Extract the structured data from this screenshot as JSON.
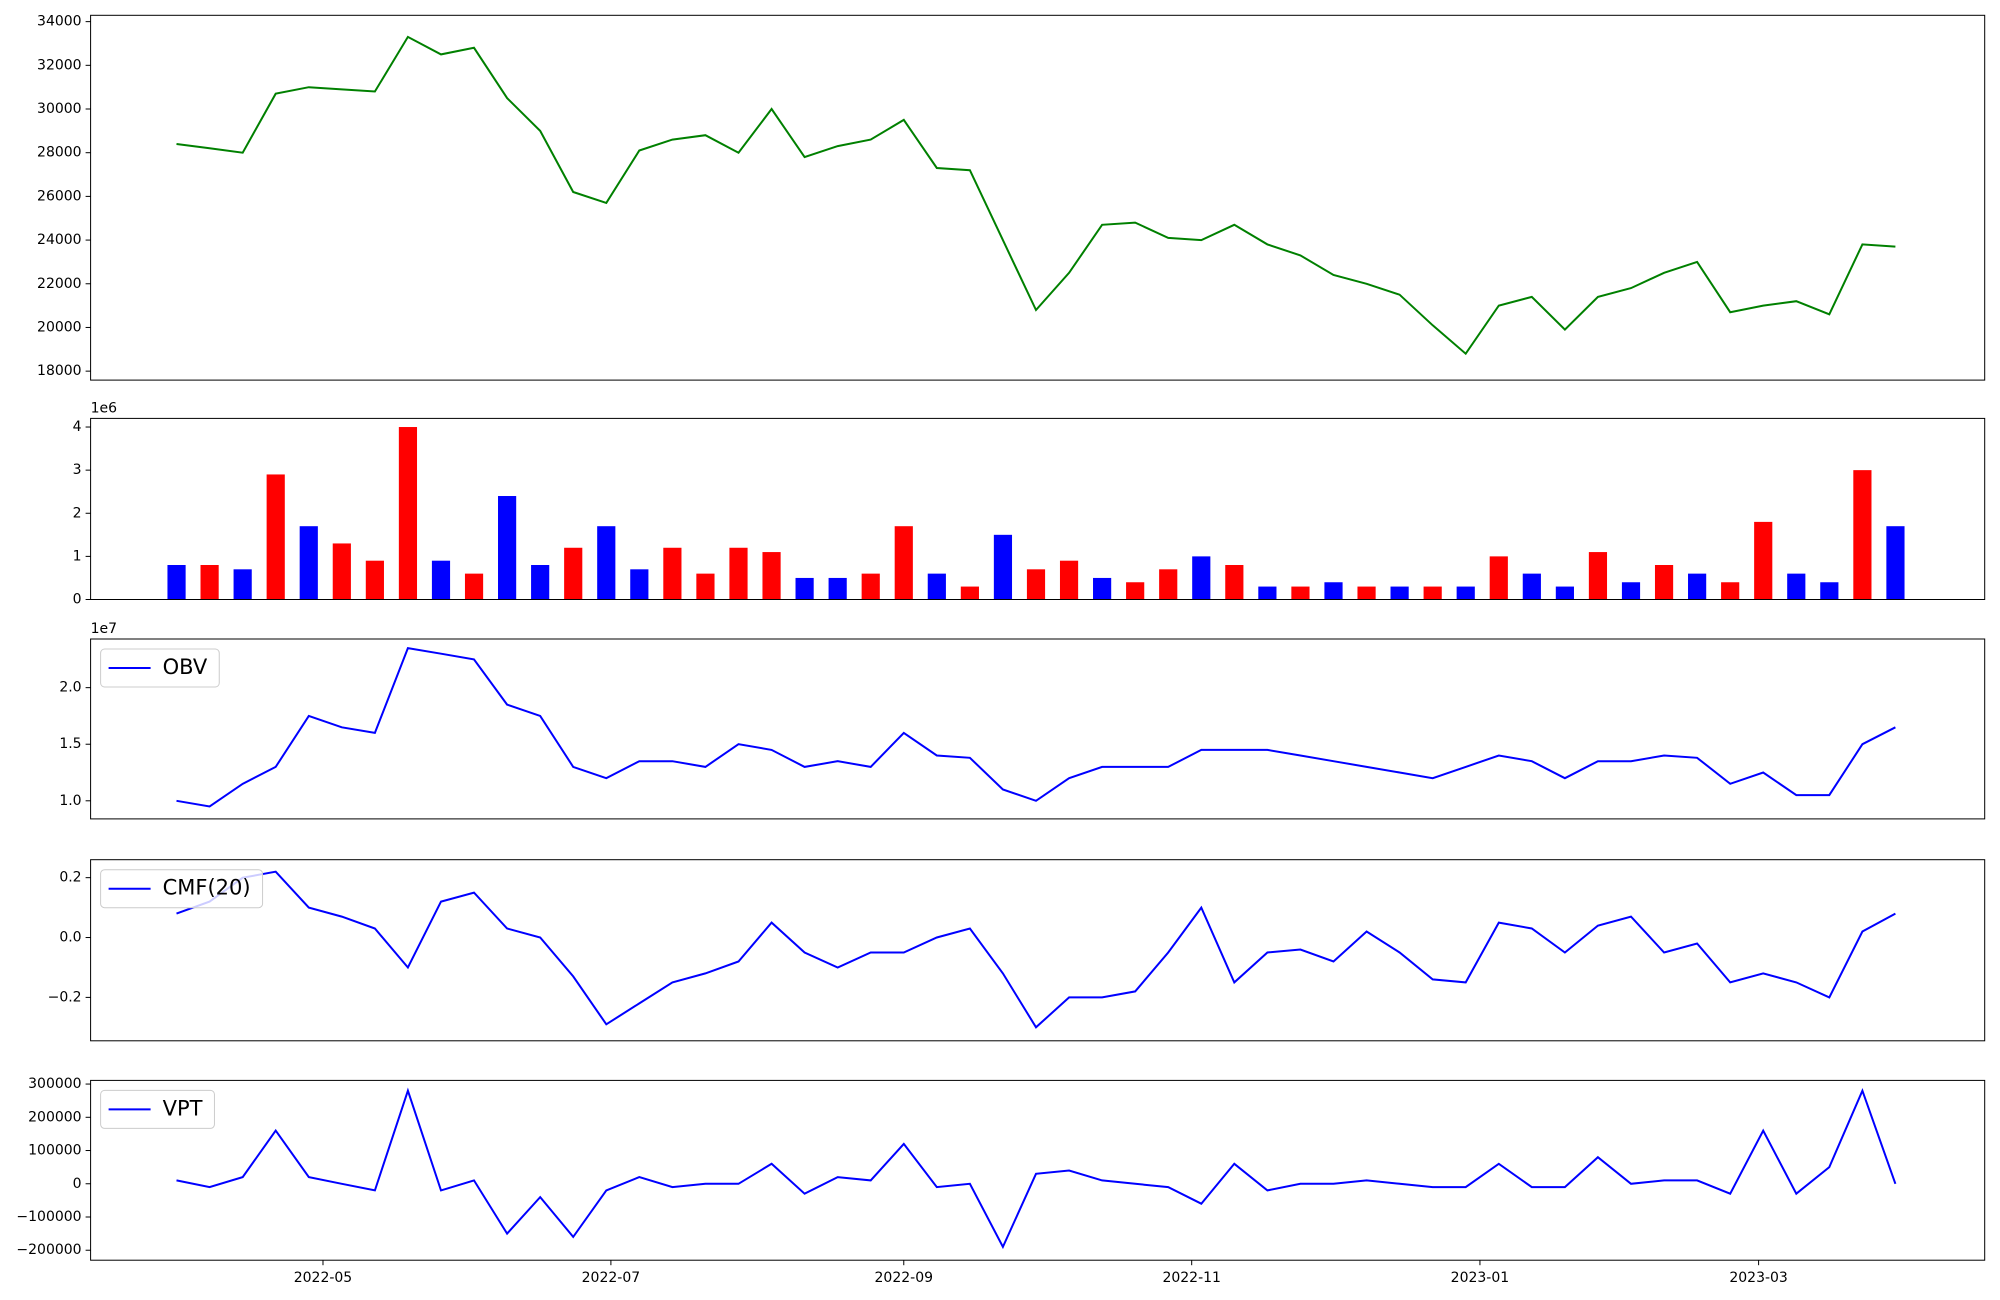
{
  "chart_data": [
    {
      "type": "line",
      "x": [
        0,
        1,
        2,
        3,
        4,
        5,
        6,
        7,
        8,
        9,
        10,
        11,
        12,
        13,
        14,
        15,
        16,
        17,
        18,
        19,
        20,
        21,
        22,
        23,
        24,
        25,
        26,
        27,
        28,
        29,
        30,
        31,
        32,
        33,
        34,
        35,
        36,
        37,
        38,
        39,
        40,
        41,
        42,
        43,
        44,
        45,
        46,
        47,
        48,
        49,
        50,
        51,
        52
      ],
      "series": [
        {
          "color": "green",
          "values": [
            28400,
            28200,
            28000,
            30700,
            31000,
            30900,
            30800,
            33300,
            32500,
            32800,
            30500,
            29000,
            26200,
            25700,
            28100,
            28600,
            28800,
            28000,
            30000,
            27800,
            28300,
            28600,
            29500,
            27300,
            27200,
            24000,
            20800,
            22500,
            24700,
            24800,
            24100,
            24000,
            24700,
            23800,
            23300,
            22400,
            22000,
            21500,
            20100,
            18800,
            21000,
            21400,
            19900,
            21400,
            21800,
            22500,
            23000,
            20700,
            21000,
            21200,
            20600,
            23800,
            23700
          ]
        }
      ],
      "xlim": [
        -2.6,
        54.7
      ],
      "ylim": [
        17590,
        34290
      ],
      "yticks": [
        18000,
        20000,
        22000,
        24000,
        26000,
        28000,
        30000,
        32000,
        34000
      ]
    },
    {
      "type": "bar",
      "x": [
        0,
        1,
        2,
        3,
        4,
        5,
        6,
        7,
        8,
        9,
        10,
        11,
        12,
        13,
        14,
        15,
        16,
        17,
        18,
        19,
        20,
        21,
        22,
        23,
        24,
        25,
        26,
        27,
        28,
        29,
        30,
        31,
        32,
        33,
        34,
        35,
        36,
        37,
        38,
        39,
        40,
        41,
        42,
        43,
        44,
        45,
        46,
        47,
        48,
        49,
        50,
        51,
        52
      ],
      "values": [
        800000,
        800000,
        700000,
        2900000,
        1700000,
        1300000,
        900000,
        4000000,
        900000,
        600000,
        2400000,
        800000,
        1200000,
        1700000,
        700000,
        1200000,
        600000,
        1200000,
        1100000,
        500000,
        500000,
        600000,
        1700000,
        600000,
        300000,
        1500000,
        700000,
        900000,
        500000,
        400000,
        700000,
        1000000,
        800000,
        300000,
        300000,
        400000,
        300000,
        300000,
        300000,
        300000,
        1000000,
        600000,
        300000,
        1100000,
        400000,
        800000,
        600000,
        400000,
        1800000,
        600000,
        400000,
        3000000,
        1700000
      ],
      "colors": [
        "blue",
        "red",
        "blue",
        "red",
        "blue",
        "red",
        "red",
        "red",
        "blue",
        "red",
        "blue",
        "blue",
        "red",
        "blue",
        "blue",
        "red",
        "red",
        "red",
        "red",
        "blue",
        "blue",
        "red",
        "red",
        "blue",
        "red",
        "blue",
        "red",
        "red",
        "blue",
        "red",
        "red",
        "blue",
        "red",
        "blue",
        "red",
        "blue",
        "red",
        "blue",
        "red",
        "blue",
        "red",
        "blue",
        "blue",
        "red",
        "blue",
        "red",
        "blue",
        "red",
        "red",
        "blue",
        "blue",
        "red",
        "blue"
      ],
      "offset_text": "1e6",
      "xlim": [
        -2.6,
        54.7
      ],
      "ylim": [
        0,
        4200000
      ],
      "yticks": [
        {
          "value": 0,
          "label": "0"
        },
        {
          "value": 1000000,
          "label": "1"
        },
        {
          "value": 2000000,
          "label": "2"
        },
        {
          "value": 3000000,
          "label": "3"
        },
        {
          "value": 4000000,
          "label": "4"
        }
      ]
    },
    {
      "type": "line",
      "x": [
        0,
        1,
        2,
        3,
        4,
        5,
        6,
        7,
        8,
        9,
        10,
        11,
        12,
        13,
        14,
        15,
        16,
        17,
        18,
        19,
        20,
        21,
        22,
        23,
        24,
        25,
        26,
        27,
        28,
        29,
        30,
        31,
        32,
        33,
        34,
        35,
        36,
        37,
        38,
        39,
        40,
        41,
        42,
        43,
        44,
        45,
        46,
        47,
        48,
        49,
        50,
        51,
        52
      ],
      "series": [
        {
          "name": "OBV",
          "color": "blue",
          "values": [
            10000000,
            9500000,
            11500000,
            13000000,
            17500000,
            16500000,
            16000000,
            23500000,
            23000000,
            22500000,
            18500000,
            17500000,
            13000000,
            12000000,
            13500000,
            13500000,
            13000000,
            15000000,
            14500000,
            13000000,
            13500000,
            13000000,
            16000000,
            14000000,
            13800000,
            11000000,
            10000000,
            12000000,
            13000000,
            13000000,
            13000000,
            14500000,
            14500000,
            14500000,
            14000000,
            13500000,
            13000000,
            12500000,
            12000000,
            13000000,
            14000000,
            13500000,
            12000000,
            13500000,
            13500000,
            14000000,
            13800000,
            11500000,
            12500000,
            10500000,
            10500000,
            15000000,
            16500000
          ]
        }
      ],
      "offset_text": "1e7",
      "legend": "upper left",
      "xlim": [
        -2.6,
        54.7
      ],
      "ylim": [
        8400000,
        24300000
      ],
      "yticks": [
        {
          "value": 10000000,
          "label": "1.0"
        },
        {
          "value": 15000000,
          "label": "1.5"
        },
        {
          "value": 20000000,
          "label": "2.0"
        }
      ]
    },
    {
      "type": "line",
      "x": [
        0,
        1,
        2,
        3,
        4,
        5,
        6,
        7,
        8,
        9,
        10,
        11,
        12,
        13,
        14,
        15,
        16,
        17,
        18,
        19,
        20,
        21,
        22,
        23,
        24,
        25,
        26,
        27,
        28,
        29,
        30,
        31,
        32,
        33,
        34,
        35,
        36,
        37,
        38,
        39,
        40,
        41,
        42,
        43,
        44,
        45,
        46,
        47,
        48,
        49,
        50,
        51,
        52
      ],
      "series": [
        {
          "name": "CMF(20)",
          "color": "blue",
          "values": [
            0.08,
            0.12,
            0.2,
            0.22,
            0.1,
            0.07,
            0.03,
            -0.1,
            0.12,
            0.15,
            0.03,
            0.0,
            -0.13,
            -0.29,
            -0.22,
            -0.15,
            -0.12,
            -0.08,
            0.05,
            -0.05,
            -0.1,
            -0.05,
            -0.05,
            0.0,
            0.03,
            -0.12,
            -0.3,
            -0.2,
            -0.2,
            -0.18,
            -0.05,
            0.1,
            -0.15,
            -0.05,
            -0.04,
            -0.08,
            0.02,
            -0.05,
            -0.14,
            -0.15,
            0.05,
            0.03,
            -0.05,
            0.04,
            0.07,
            -0.05,
            -0.02,
            -0.15,
            -0.12,
            -0.15,
            -0.2,
            0.02,
            0.08
          ]
        }
      ],
      "legend": "upper left",
      "xlim": [
        -2.6,
        54.7
      ],
      "ylim": [
        -0.345,
        0.26
      ],
      "yticks": [
        {
          "value": -0.2,
          "label": "−0.2"
        },
        {
          "value": 0,
          "label": "0.0"
        },
        {
          "value": 0.2,
          "label": "0.2"
        }
      ]
    },
    {
      "type": "line",
      "x": [
        0,
        1,
        2,
        3,
        4,
        5,
        6,
        7,
        8,
        9,
        10,
        11,
        12,
        13,
        14,
        15,
        16,
        17,
        18,
        19,
        20,
        21,
        22,
        23,
        24,
        25,
        26,
        27,
        28,
        29,
        30,
        31,
        32,
        33,
        34,
        35,
        36,
        37,
        38,
        39,
        40,
        41,
        42,
        43,
        44,
        45,
        46,
        47,
        48,
        49,
        50,
        51,
        52
      ],
      "series": [
        {
          "name": "VPT",
          "color": "blue",
          "values": [
            10000,
            -10000,
            20000,
            160000,
            20000,
            0,
            -20000,
            280000,
            -20000,
            10000,
            -150000,
            -40000,
            -160000,
            -20000,
            20000,
            -10000,
            0,
            0,
            60000,
            -30000,
            20000,
            10000,
            120000,
            -10000,
            0,
            -190000,
            30000,
            40000,
            10000,
            0,
            -10000,
            -60000,
            60000,
            -20000,
            0,
            0,
            10000,
            0,
            -10000,
            -10000,
            60000,
            -10000,
            -10000,
            80000,
            0,
            10000,
            10000,
            -30000,
            160000,
            -30000,
            50000,
            280000,
            0
          ]
        }
      ],
      "legend": "upper left",
      "xlim": [
        -2.6,
        54.7
      ],
      "ylim": [
        -230000,
        311000
      ],
      "yticks": [
        {
          "value": -200000,
          "label": "−200000"
        },
        {
          "value": -100000,
          "label": "−100000"
        },
        0,
        100000,
        200000,
        300000
      ],
      "xticks": [
        {
          "value": 4.43,
          "label": "2022-05"
        },
        {
          "value": 13.14,
          "label": "2022-07"
        },
        {
          "value": 22.0,
          "label": "2022-09"
        },
        {
          "value": 30.71,
          "label": "2022-11"
        },
        {
          "value": 39.43,
          "label": "2023-01"
        },
        {
          "value": 47.86,
          "label": "2023-03"
        }
      ]
    }
  ]
}
